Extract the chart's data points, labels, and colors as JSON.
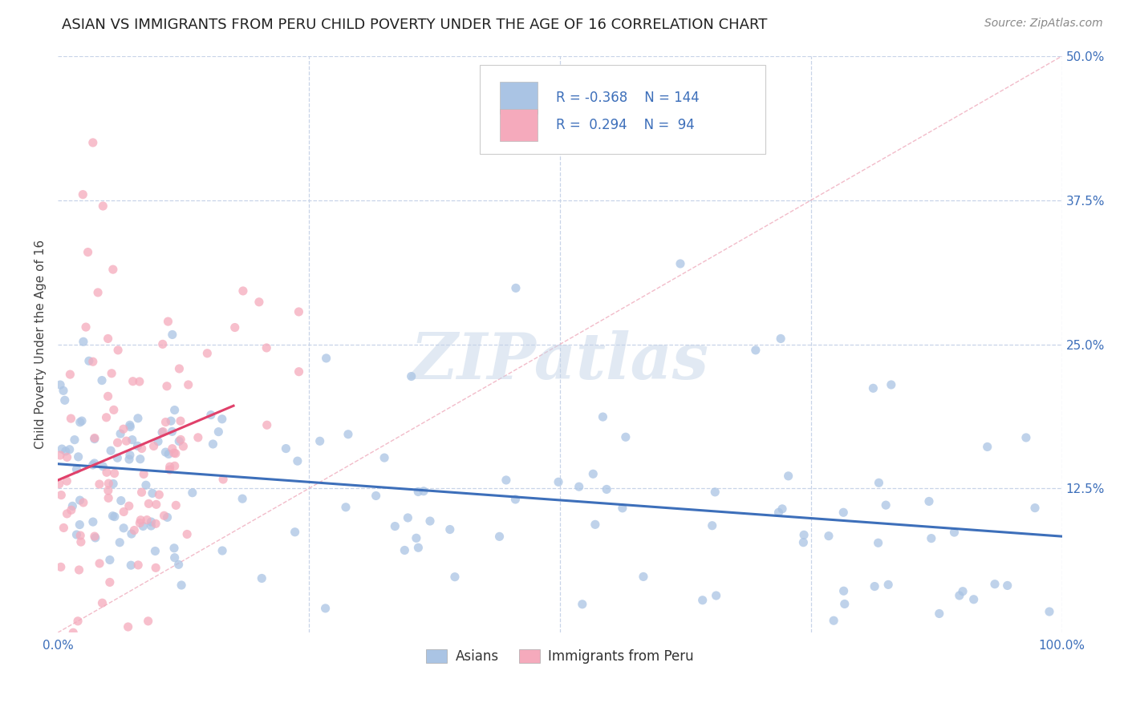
{
  "title": "ASIAN VS IMMIGRANTS FROM PERU CHILD POVERTY UNDER THE AGE OF 16 CORRELATION CHART",
  "source": "Source: ZipAtlas.com",
  "ylabel": "Child Poverty Under the Age of 16",
  "xlim": [
    0,
    1.0
  ],
  "ylim": [
    0,
    0.5
  ],
  "x_tick_labels": [
    "0.0%",
    "",
    "",
    "",
    "100.0%"
  ],
  "y_tick_labels_right": [
    "50.0%",
    "37.5%",
    "25.0%",
    "12.5%",
    ""
  ],
  "y_ticks_right": [
    0.5,
    0.375,
    0.25,
    0.125,
    0.0
  ],
  "legend_labels": [
    "Asians",
    "Immigrants from Peru"
  ],
  "asian_color": "#aac4e4",
  "peru_color": "#f5aabc",
  "asian_line_color": "#3d6fba",
  "peru_line_color": "#e0406a",
  "diag_line_color": "#f0b0c0",
  "R_asian": -0.368,
  "N_asian": 144,
  "R_peru": 0.294,
  "N_peru": 94,
  "background_color": "#ffffff",
  "grid_color": "#c8d4e8",
  "watermark": "ZIPatlas",
  "title_fontsize": 13,
  "label_fontsize": 11,
  "tick_fontsize": 11,
  "source_fontsize": 10
}
